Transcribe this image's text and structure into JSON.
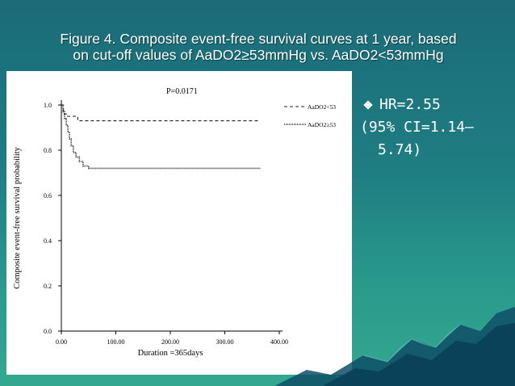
{
  "slide": {
    "title_line1": "Figure 4. Composite event-free survival curves at 1 year, based",
    "title_line2": "on cut-off values of AaDO2≥53mmHg vs. AaDO2<53mmHg",
    "bullets": [
      {
        "text": "HR=2.55",
        "marker": "diamond-icon"
      },
      {
        "text": "(95% CI=1.14–",
        "marker": "none"
      },
      {
        "text": "5.74)",
        "marker": "none"
      }
    ],
    "colors": {
      "background": "#1f7e82",
      "text": "#ffffff",
      "panel": "#ffffff"
    }
  },
  "chart_data": {
    "type": "line",
    "title": "",
    "annotation": "P=0.0171",
    "xlabel": "Duration =365days",
    "ylabel": "Composite event-free survival probability",
    "xlim": [
      0,
      400
    ],
    "ylim": [
      0,
      1
    ],
    "xticks": [
      0,
      100,
      200,
      300,
      400
    ],
    "xtick_labels": [
      "0.00",
      "100.00",
      "200.00",
      "300.00",
      "400.00"
    ],
    "yticks": [
      0,
      0.2,
      0.4,
      0.6,
      0.8,
      1.0
    ],
    "ytick_labels": [
      "0.0",
      "0.2",
      "0.4",
      "0.6",
      "0.8",
      "1.0"
    ],
    "grid": false,
    "legend_position": "top-right",
    "series": [
      {
        "name": "AaDO2<53",
        "style": "dashed",
        "x": [
          0,
          4,
          4,
          10,
          10,
          30,
          30,
          365
        ],
        "y": [
          1.0,
          1.0,
          0.96,
          0.96,
          0.95,
          0.95,
          0.93,
          0.93
        ]
      },
      {
        "name": "AaDO2≥53",
        "style": "dotted",
        "x": [
          0,
          3,
          3,
          6,
          6,
          9,
          9,
          12,
          12,
          15,
          15,
          18,
          18,
          22,
          22,
          27,
          27,
          33,
          33,
          40,
          40,
          50,
          50,
          365
        ],
        "y": [
          1.0,
          1.0,
          0.97,
          0.97,
          0.94,
          0.94,
          0.91,
          0.91,
          0.88,
          0.88,
          0.85,
          0.85,
          0.82,
          0.82,
          0.79,
          0.79,
          0.77,
          0.77,
          0.75,
          0.75,
          0.73,
          0.73,
          0.72,
          0.72
        ]
      }
    ]
  }
}
